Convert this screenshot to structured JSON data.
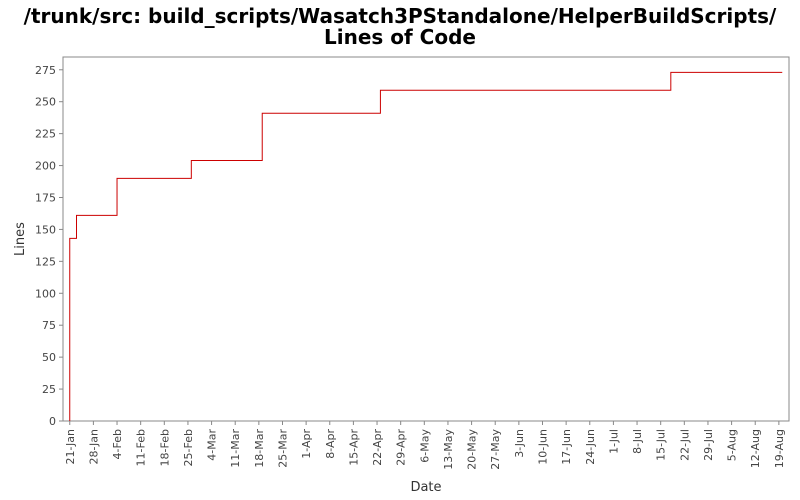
{
  "title_line1": "/trunk/src: build_scripts/Wasatch3PStandalone/HelperBuildScripts/",
  "title_line2": "Lines of Code",
  "chart_data": {
    "type": "line",
    "step": true,
    "title": "/trunk/src: build_scripts/Wasatch3PStandalone/HelperBuildScripts/ Lines of Code",
    "xlabel": "Date",
    "ylabel": "Lines",
    "ylim": [
      0,
      285
    ],
    "yticks": [
      0,
      25,
      50,
      75,
      100,
      125,
      150,
      175,
      200,
      225,
      250,
      275
    ],
    "xlim": [
      "2008-01-19",
      "2008-08-21"
    ],
    "xticks": [
      "21-Jan",
      "28-Jan",
      "4-Feb",
      "11-Feb",
      "18-Feb",
      "25-Feb",
      "4-Mar",
      "11-Mar",
      "18-Mar",
      "25-Mar",
      "1-Apr",
      "8-Apr",
      "15-Apr",
      "22-Apr",
      "29-Apr",
      "6-May",
      "13-May",
      "20-May",
      "27-May",
      "3-Jun",
      "10-Jun",
      "17-Jun",
      "24-Jun",
      "1-Jul",
      "8-Jul",
      "15-Jul",
      "22-Jul",
      "29-Jul",
      "5-Aug",
      "12-Aug",
      "19-Aug"
    ],
    "grid": false,
    "series": [
      {
        "color": "#cc0000",
        "x": [
          "2008-01-21",
          "2008-01-21",
          "2008-01-23",
          "2008-02-04",
          "2008-02-26",
          "2008-03-18",
          "2008-04-22",
          "2008-07-17",
          "2008-08-19"
        ],
        "y": [
          0,
          143,
          161,
          190,
          204,
          241,
          259,
          273,
          273
        ]
      }
    ]
  }
}
